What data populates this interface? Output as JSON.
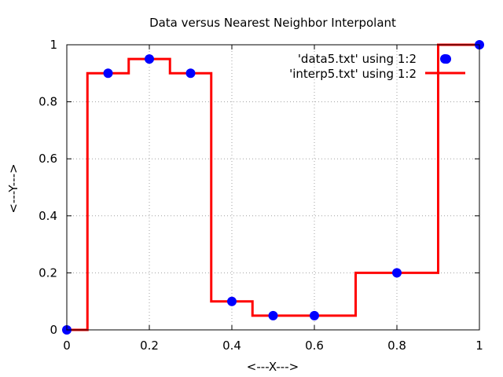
{
  "chart_data": {
    "type": "line",
    "title": "Data versus Nearest Neighbor Interpolant",
    "xlabel": "<---X--->",
    "ylabel": "<---Y--->",
    "xlim": [
      0,
      1
    ],
    "ylim": [
      0,
      1
    ],
    "x_ticks": [
      "0",
      "0.2",
      "0.4",
      "0.6",
      "0.8",
      "1"
    ],
    "y_ticks": [
      "0",
      "0.2",
      "0.4",
      "0.6",
      "0.8",
      "1"
    ],
    "grid": true,
    "legend_position": "top-right",
    "series": [
      {
        "name": "'data5.txt' using 1:2",
        "style": "points",
        "color": "#0000ff",
        "x": [
          0.0,
          0.1,
          0.2,
          0.3,
          0.4,
          0.5,
          0.6,
          0.8,
          0.92,
          1.0
        ],
        "y": [
          0.0,
          0.9,
          0.95,
          0.9,
          0.1,
          0.05,
          0.05,
          0.2,
          0.95,
          1.0
        ]
      },
      {
        "name": "'interp5.txt' using 1:2",
        "style": "lines",
        "color": "#ff0000",
        "x": [
          0.0,
          0.05,
          0.05,
          0.15,
          0.15,
          0.25,
          0.25,
          0.35,
          0.35,
          0.45,
          0.45,
          0.55,
          0.55,
          0.7,
          0.7,
          0.9,
          0.9,
          1.0
        ],
        "y": [
          0.0,
          0.0,
          0.9,
          0.9,
          0.95,
          0.95,
          0.9,
          0.9,
          0.1,
          0.1,
          0.05,
          0.05,
          0.05,
          0.05,
          0.2,
          0.2,
          1.0,
          1.0
        ]
      }
    ]
  }
}
